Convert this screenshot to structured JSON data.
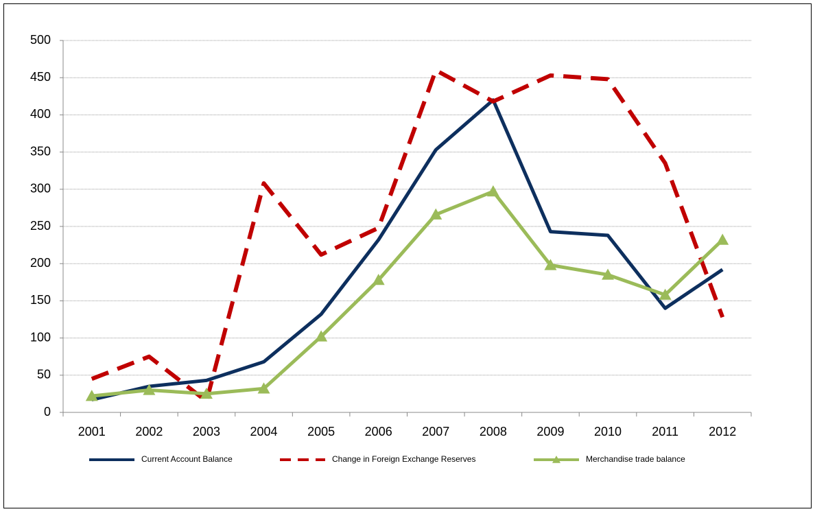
{
  "chart_data": {
    "type": "line",
    "categories": [
      "2001",
      "2002",
      "2003",
      "2004",
      "2005",
      "2006",
      "2007",
      "2008",
      "2009",
      "2010",
      "2011",
      "2012"
    ],
    "series": [
      {
        "name": "Current Account Balance",
        "color": "#0d2f5e",
        "dash": false,
        "marker": false,
        "values": [
          17,
          35,
          43,
          68,
          132,
          232,
          353,
          420,
          243,
          238,
          140,
          192
        ]
      },
      {
        "name": "Change in Foreign Exchange Reserves",
        "color": "#c00000",
        "dash": true,
        "marker": false,
        "values": [
          45,
          75,
          15,
          308,
          212,
          248,
          460,
          418,
          453,
          448,
          335,
          128
        ]
      },
      {
        "name": "Merchandise trade balance",
        "color": "#9bbb59",
        "dash": false,
        "marker": true,
        "values": [
          22,
          30,
          25,
          32,
          102,
          178,
          266,
          297,
          198,
          185,
          158,
          232
        ]
      }
    ],
    "ylim": [
      0,
      500
    ],
    "yticks": [
      0,
      50,
      100,
      150,
      200,
      250,
      300,
      350,
      400,
      450,
      500
    ],
    "grid": true
  }
}
